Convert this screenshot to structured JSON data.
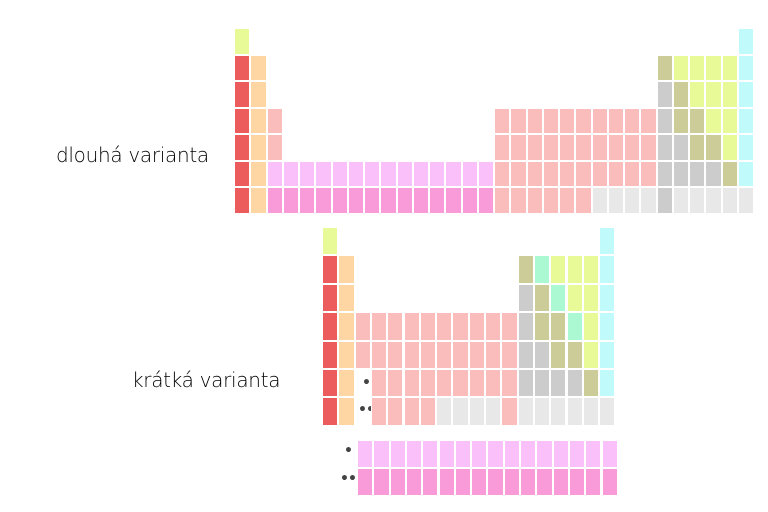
{
  "labels": {
    "long": "dlouhá varianta",
    "short": "krátká varianta"
  },
  "markers": {
    "single": "•",
    "double": "••"
  },
  "colors": {
    "h": "#e8fa98",
    "alkali": "#ec5c5c",
    "alkaline_earth": "#fdd6a4",
    "transition": "#fbbcbc",
    "lanthanide": "#f9c0f9",
    "actinide": "#f99ad9",
    "post_transition": "#cccccc",
    "metalloid": "#cccc99",
    "nonmetal": "#e8fa98",
    "halogen": "#aaf9d2",
    "noble_gas": "#c0fafa",
    "unknown": "#e8e8e8"
  }
}
